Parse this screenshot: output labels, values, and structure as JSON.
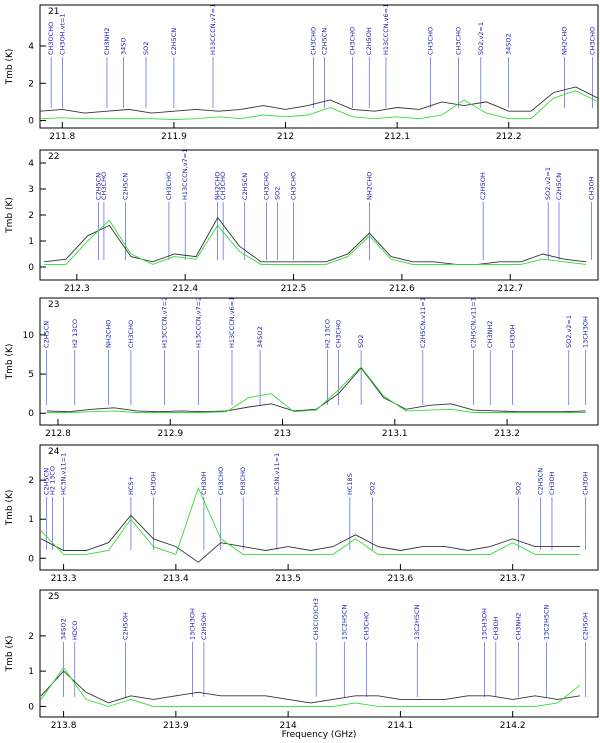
{
  "chart_data": [
    {
      "type": "line",
      "label": "21",
      "ylabel": "Tmb (K)",
      "x": [
        211.78,
        211.8,
        211.82,
        211.84,
        211.86,
        211.88,
        211.9,
        211.92,
        211.94,
        211.96,
        211.98,
        212.0,
        212.02,
        212.04,
        212.06,
        212.08,
        212.1,
        212.12,
        212.14,
        212.16,
        212.18,
        212.2,
        212.22,
        212.24,
        212.26,
        212.28
      ],
      "series": [
        {
          "color": "#333333",
          "values": [
            0.5,
            0.6,
            0.4,
            0.5,
            0.6,
            0.4,
            0.5,
            0.6,
            0.5,
            0.6,
            0.8,
            0.6,
            0.8,
            1.1,
            0.6,
            0.5,
            0.7,
            0.6,
            1.0,
            0.8,
            1.0,
            0.5,
            0.5,
            1.5,
            1.8,
            1.2
          ]
        },
        {
          "color": "#33dd33",
          "values": [
            0.1,
            0.15,
            0.1,
            0.1,
            0.1,
            0.1,
            0.05,
            0.1,
            0.2,
            0.1,
            0.3,
            0.2,
            0.3,
            0.7,
            0.2,
            0.1,
            0.2,
            0.1,
            0.3,
            1.1,
            0.4,
            0.1,
            0.1,
            1.2,
            1.6,
            1.0
          ]
        }
      ],
      "xlim": [
        211.78,
        212.28
      ],
      "ylim": [
        -0.4,
        6.2
      ],
      "xticks": [
        211.8,
        211.9,
        212,
        212.1,
        212.2
      ],
      "yticks": [
        0,
        2,
        4
      ],
      "lines": [
        {
          "x": 211.79,
          "label": "CH3OCHO"
        },
        {
          "x": 211.8,
          "label": "CH3OH,vt=1"
        },
        {
          "x": 211.84,
          "label": "CH3NH2"
        },
        {
          "x": 211.855,
          "label": "34SO"
        },
        {
          "x": 211.875,
          "label": "SO2"
        },
        {
          "x": 211.9,
          "label": "C2H5CN"
        },
        {
          "x": 211.935,
          "label": "H13CCCN,v7=1"
        },
        {
          "x": 212.025,
          "label": "CH3CHO"
        },
        {
          "x": 212.035,
          "label": "C2H5CN"
        },
        {
          "x": 212.06,
          "label": "CH3CHO"
        },
        {
          "x": 212.075,
          "label": "C2H5OH"
        },
        {
          "x": 212.09,
          "label": "H13CCCN,v6=1"
        },
        {
          "x": 212.13,
          "label": "CH3CHO"
        },
        {
          "x": 212.155,
          "label": "CH3CHO"
        },
        {
          "x": 212.175,
          "label": "SO2,v2=1"
        },
        {
          "x": 212.2,
          "label": "34SO2"
        },
        {
          "x": 212.25,
          "label": "NH2CHO"
        },
        {
          "x": 212.275,
          "label": "CH3CHO"
        }
      ]
    },
    {
      "type": "line",
      "label": "22",
      "ylabel": "Tmb (K)",
      "x": [
        212.27,
        212.29,
        212.31,
        212.33,
        212.35,
        212.37,
        212.39,
        212.41,
        212.43,
        212.45,
        212.47,
        212.49,
        212.51,
        212.53,
        212.55,
        212.57,
        212.59,
        212.61,
        212.63,
        212.65,
        212.67,
        212.69,
        212.71,
        212.73,
        212.75,
        212.77
      ],
      "series": [
        {
          "color": "#333333",
          "values": [
            0.2,
            0.3,
            1.2,
            1.6,
            0.4,
            0.2,
            0.5,
            0.4,
            1.9,
            0.8,
            0.2,
            0.2,
            0.2,
            0.2,
            0.5,
            1.3,
            0.4,
            0.2,
            0.2,
            0.1,
            0.1,
            0.2,
            0.2,
            0.5,
            0.3,
            0.2
          ]
        },
        {
          "color": "#33dd33",
          "values": [
            0.1,
            0.1,
            1.0,
            1.8,
            0.5,
            0.1,
            0.4,
            0.3,
            1.6,
            0.6,
            0.1,
            0.1,
            0.1,
            0.1,
            0.4,
            1.2,
            0.3,
            0.1,
            0.1,
            0.1,
            0.1,
            0.1,
            0.1,
            0.3,
            0.2,
            0.1
          ]
        }
      ],
      "xlim": [
        212.266,
        212.781
      ],
      "ylim": [
        -0.5,
        4.5
      ],
      "xticks": [
        212.3,
        212.4,
        212.5,
        212.6,
        212.7
      ],
      "yticks": [
        0,
        1,
        2,
        3,
        4
      ],
      "lines": [
        {
          "x": 212.32,
          "label": "C2H5CN"
        },
        {
          "x": 212.325,
          "label": "CH3CHO"
        },
        {
          "x": 212.345,
          "label": "C2H5CN"
        },
        {
          "x": 212.385,
          "label": "CH3CHO"
        },
        {
          "x": 212.4,
          "label": "H13CCCN,v7=1"
        },
        {
          "x": 212.43,
          "label": "NH2CHO"
        },
        {
          "x": 212.435,
          "label": "CH3CHO"
        },
        {
          "x": 212.455,
          "label": "C2H5CN"
        },
        {
          "x": 212.475,
          "label": "CH3CHO"
        },
        {
          "x": 212.485,
          "label": "SO2"
        },
        {
          "x": 212.5,
          "label": "CH3CHO"
        },
        {
          "x": 212.57,
          "label": "NH2CHO"
        },
        {
          "x": 212.675,
          "label": "C2H5OH"
        },
        {
          "x": 212.735,
          "label": "SO2,v2=1"
        },
        {
          "x": 212.745,
          "label": "C2H5CN"
        },
        {
          "x": 212.775,
          "label": "CH3OH"
        }
      ]
    },
    {
      "type": "line",
      "label": "23",
      "ylabel": "Tmb (K)",
      "x": [
        212.79,
        212.81,
        212.83,
        212.85,
        212.87,
        212.89,
        212.91,
        212.93,
        212.95,
        212.97,
        212.99,
        213.01,
        213.03,
        213.05,
        213.07,
        213.09,
        213.11,
        213.13,
        213.15,
        213.17,
        213.19,
        213.21,
        213.23,
        213.25,
        213.27
      ],
      "series": [
        {
          "color": "#333333",
          "values": [
            0.3,
            0.2,
            0.5,
            0.7,
            0.3,
            0.2,
            0.3,
            0.2,
            0.3,
            0.8,
            1.2,
            0.3,
            0.5,
            2.5,
            5.8,
            2.0,
            0.5,
            1.0,
            1.2,
            0.4,
            0.3,
            0.2,
            0.2,
            0.2,
            0.3
          ]
        },
        {
          "color": "#33dd33",
          "values": [
            0.1,
            0.1,
            0.2,
            0.3,
            0.1,
            0.1,
            0.1,
            0.1,
            0.2,
            2.0,
            2.5,
            0.2,
            0.4,
            3.0,
            5.9,
            2.2,
            0.3,
            0.4,
            0.5,
            0.1,
            0.1,
            0.1,
            0.1,
            0.1,
            0.1
          ]
        }
      ],
      "xlim": [
        212.784,
        213.281
      ],
      "ylim": [
        -1.5,
        14.7
      ],
      "xticks": [
        212.8,
        212.9,
        213,
        213.1,
        213.2
      ],
      "yticks": [
        0,
        5,
        10
      ],
      "lines": [
        {
          "x": 212.79,
          "label": "C2H5CN"
        },
        {
          "x": 212.815,
          "label": "H2 13CO"
        },
        {
          "x": 212.845,
          "label": "NH2CHO"
        },
        {
          "x": 212.865,
          "label": "CH3CHO"
        },
        {
          "x": 212.895,
          "label": "H13CCCN,v7=2"
        },
        {
          "x": 212.925,
          "label": "H13CCCN,v7=2"
        },
        {
          "x": 212.955,
          "label": "H13CCCN,v6=1"
        },
        {
          "x": 212.98,
          "label": "34SO2"
        },
        {
          "x": 213.04,
          "label": "H2 13CO"
        },
        {
          "x": 213.05,
          "label": "CH3CHO"
        },
        {
          "x": 213.07,
          "label": "SO2"
        },
        {
          "x": 213.125,
          "label": "C2H5CN,v11=1"
        },
        {
          "x": 213.17,
          "label": "C2H5CN,v11=1"
        },
        {
          "x": 213.185,
          "label": "CH3NH2"
        },
        {
          "x": 213.205,
          "label": "CH3OH"
        },
        {
          "x": 213.255,
          "label": "SO2,v2=1"
        },
        {
          "x": 213.27,
          "label": "13CH3OH"
        }
      ]
    },
    {
      "type": "line",
      "label": "24",
      "ylabel": "Tmb (K)",
      "x": [
        213.28,
        213.3,
        213.32,
        213.34,
        213.36,
        213.38,
        213.4,
        213.42,
        213.44,
        213.46,
        213.48,
        213.5,
        213.52,
        213.54,
        213.56,
        213.58,
        213.6,
        213.62,
        213.64,
        213.66,
        213.68,
        213.7,
        213.72,
        213.74,
        213.76
      ],
      "series": [
        {
          "color": "#333333",
          "values": [
            0.5,
            0.2,
            0.2,
            0.4,
            1.1,
            0.5,
            0.3,
            -0.1,
            0.4,
            0.3,
            0.2,
            0.3,
            0.2,
            0.3,
            0.6,
            0.3,
            0.2,
            0.3,
            0.3,
            0.2,
            0.3,
            0.5,
            0.3,
            0.3,
            0.3
          ]
        },
        {
          "color": "#33dd33",
          "values": [
            0.7,
            0.1,
            0.1,
            0.2,
            1.0,
            0.3,
            0.1,
            1.8,
            0.5,
            0.1,
            0.1,
            0.1,
            0.1,
            0.1,
            0.5,
            0.1,
            0.1,
            0.1,
            0.1,
            0.1,
            0.1,
            0.4,
            0.1,
            0.1,
            0.1
          ]
        }
      ],
      "xlim": [
        213.279,
        213.776
      ],
      "ylim": [
        -0.3,
        2.9
      ],
      "xticks": [
        213.3,
        213.4,
        213.5,
        213.6,
        213.7
      ],
      "yticks": [
        0,
        1,
        2
      ],
      "lines": [
        {
          "x": 213.285,
          "label": "C2H5CN"
        },
        {
          "x": 213.29,
          "label": "H2 13CO"
        },
        {
          "x": 213.3,
          "label": "HC3N,v11=1"
        },
        {
          "x": 213.36,
          "label": "HCS+"
        },
        {
          "x": 213.38,
          "label": "CH3OH"
        },
        {
          "x": 213.425,
          "label": "CH3OH"
        },
        {
          "x": 213.44,
          "label": "CH3CHO"
        },
        {
          "x": 213.46,
          "label": "CH3CHO"
        },
        {
          "x": 213.49,
          "label": "HC3N,v11=1"
        },
        {
          "x": 213.555,
          "label": "HC18S"
        },
        {
          "x": 213.575,
          "label": "SO2"
        },
        {
          "x": 213.705,
          "label": "SO2"
        },
        {
          "x": 213.725,
          "label": "C2H5CN"
        },
        {
          "x": 213.735,
          "label": "CH3OH"
        },
        {
          "x": 213.765,
          "label": "CH3OH"
        }
      ]
    },
    {
      "type": "line",
      "label": "25",
      "ylabel": "Tmb (K)",
      "xlabel": "Frequency (GHz)",
      "x": [
        213.78,
        213.8,
        213.82,
        213.84,
        213.86,
        213.88,
        213.9,
        213.92,
        213.94,
        213.96,
        213.98,
        214.0,
        214.02,
        214.04,
        214.06,
        214.08,
        214.1,
        214.12,
        214.14,
        214.16,
        214.18,
        214.2,
        214.22,
        214.24,
        214.26
      ],
      "series": [
        {
          "color": "#333333",
          "values": [
            0.3,
            1.0,
            0.4,
            0.1,
            0.3,
            0.2,
            0.3,
            0.4,
            0.3,
            0.3,
            0.3,
            0.2,
            0.1,
            0.2,
            0.3,
            0.3,
            0.2,
            0.2,
            0.2,
            0.3,
            0.3,
            0.2,
            0.3,
            0.2,
            0.3
          ]
        },
        {
          "color": "#33dd33",
          "values": [
            0.2,
            1.1,
            0.2,
            0.0,
            0.2,
            0.0,
            0.0,
            0.0,
            0.0,
            0.0,
            0.0,
            0.0,
            0.0,
            0.0,
            0.1,
            0.0,
            0.0,
            0.0,
            0.0,
            0.0,
            0.0,
            0.0,
            0.0,
            0.1,
            0.6
          ]
        }
      ],
      "xlim": [
        213.779,
        214.276
      ],
      "ylim": [
        -0.3,
        3.3
      ],
      "xticks": [
        213.8,
        213.9,
        214,
        214.1,
        214.2
      ],
      "yticks": [
        0,
        1,
        2
      ],
      "lines": [
        {
          "x": 213.8,
          "label": "34SO2"
        },
        {
          "x": 213.81,
          "label": "HDCO"
        },
        {
          "x": 213.855,
          "label": "C2H5OH"
        },
        {
          "x": 213.915,
          "label": "13CH3OH"
        },
        {
          "x": 213.925,
          "label": "C2H5OH"
        },
        {
          "x": 214.025,
          "label": "CH3C(O)CH3"
        },
        {
          "x": 214.05,
          "label": "13C2H5CN"
        },
        {
          "x": 214.07,
          "label": "CH3CHO"
        },
        {
          "x": 214.115,
          "label": "13C2H5CN"
        },
        {
          "x": 214.175,
          "label": "13CH3OH"
        },
        {
          "x": 214.185,
          "label": "CH3OH"
        },
        {
          "x": 214.205,
          "label": "CH3NH2"
        },
        {
          "x": 214.23,
          "label": "13C2H5CN"
        },
        {
          "x": 214.265,
          "label": "C2H5OH"
        }
      ]
    }
  ]
}
